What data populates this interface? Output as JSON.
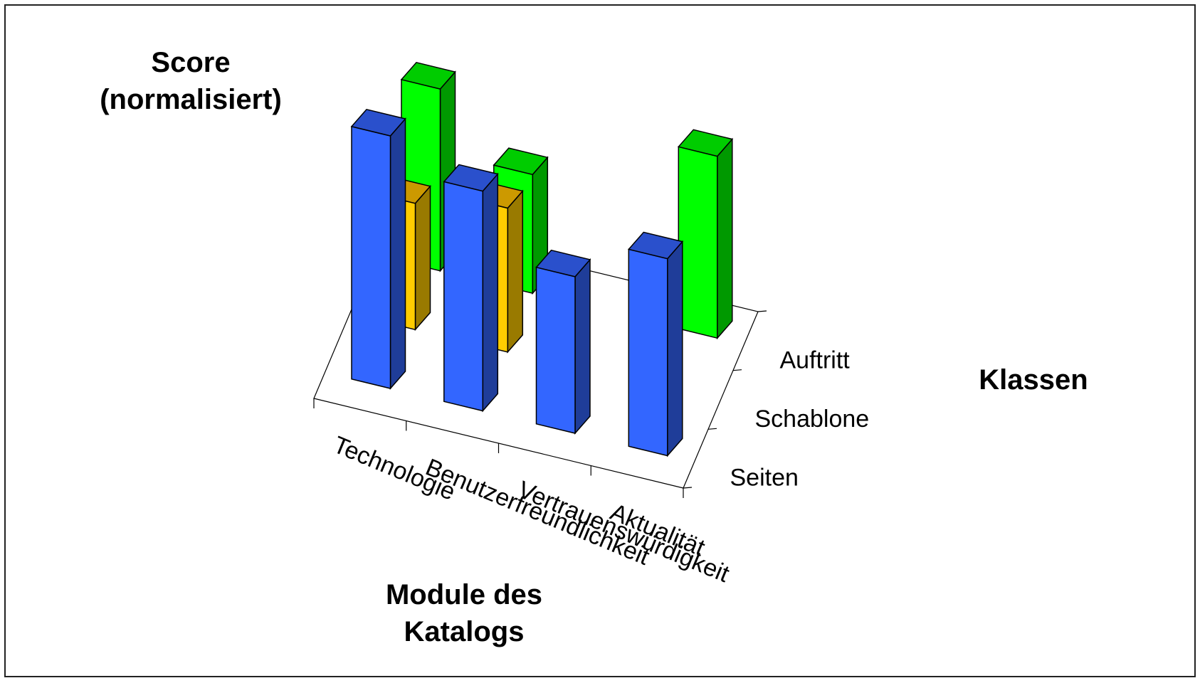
{
  "chart_data": {
    "type": "bar",
    "title": "",
    "ylabel_lines": [
      "Score",
      "(normalisiert)"
    ],
    "xlabel_lines": [
      "Module des",
      "Katalogs"
    ],
    "zlabel": "Klassen",
    "categories": [
      "Technologie",
      "Benutzerfreundlichkeit",
      "Vertrauenswürdigkeit",
      "Aktualität"
    ],
    "classes": [
      "Seiten",
      "Schablone",
      "Auftritt"
    ],
    "series": [
      {
        "class": "Auftritt",
        "values": [
          0.72,
          0.47,
          0.0,
          0.72
        ],
        "color": "#00ff00",
        "side": "#009900",
        "top": "#00cc00"
      },
      {
        "class": "Schablone",
        "values": [
          0.5,
          0.57,
          0.0,
          0.0
        ],
        "color": "#ffcc00",
        "side": "#997a00",
        "top": "#cc9900"
      },
      {
        "class": "Seiten",
        "values": [
          1.0,
          0.87,
          0.62,
          0.78
        ],
        "color": "#3366ff",
        "side": "#1f3d99",
        "top": "#2a50cc"
      }
    ],
    "legend": "none",
    "grid": false
  }
}
